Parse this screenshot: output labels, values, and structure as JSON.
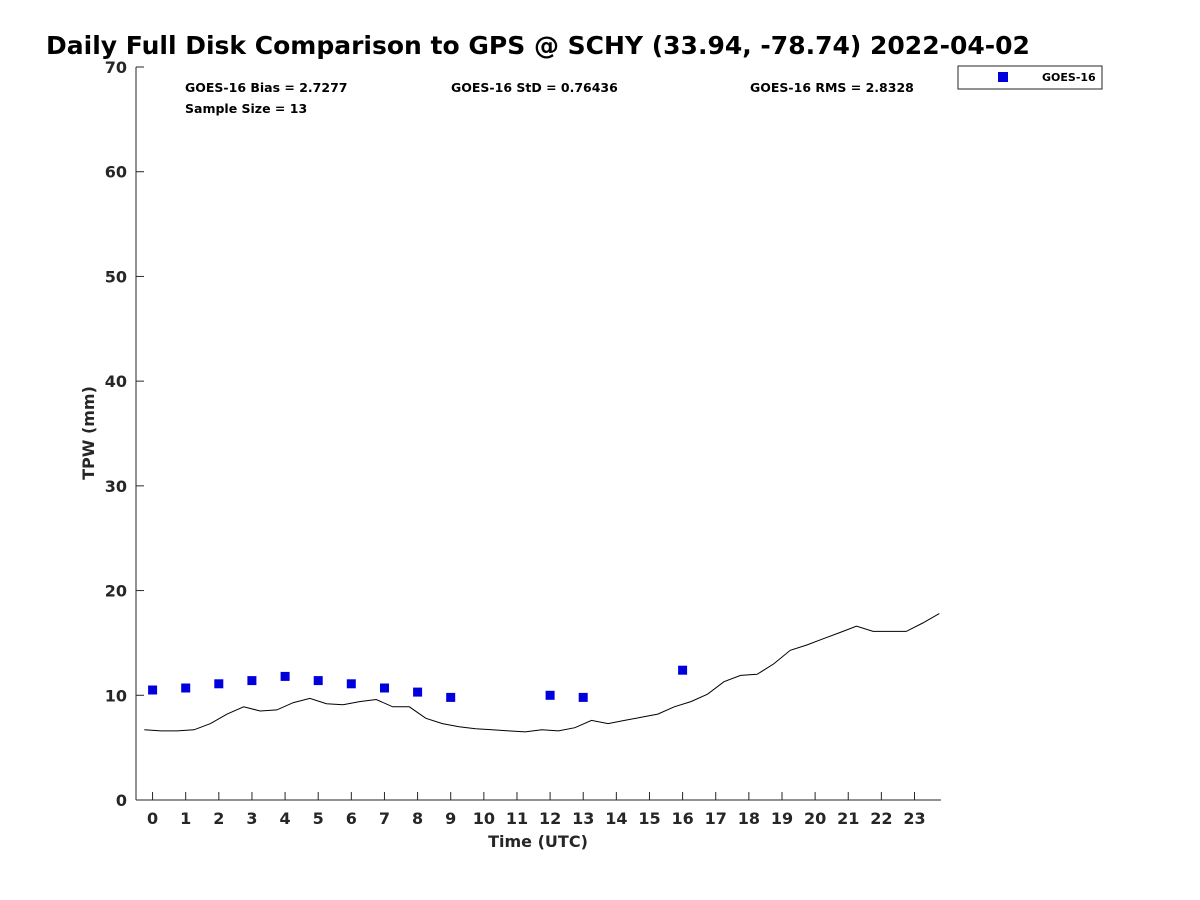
{
  "chart_data": {
    "type": "scatter",
    "title": "Daily Full Disk Comparison to GPS @ SCHY (33.94, -78.74) 2022-04-02",
    "xlabel": "Time (UTC)",
    "ylabel": "TPW (mm)",
    "xlim": [
      -0.5,
      23.8
    ],
    "ylim": [
      0,
      70
    ],
    "x_ticks": [
      0,
      1,
      2,
      3,
      4,
      5,
      6,
      7,
      8,
      9,
      10,
      11,
      12,
      13,
      14,
      15,
      16,
      17,
      18,
      19,
      20,
      21,
      22,
      23
    ],
    "y_ticks": [
      0,
      10,
      20,
      30,
      40,
      50,
      60,
      70
    ],
    "grid": false,
    "legend_position": "top-right-outside",
    "stats": {
      "bias": "GOES-16 Bias = 2.7277",
      "std": "GOES-16 StD = 0.76436",
      "rms": "GOES-16 RMS = 2.8328",
      "sample_size": "Sample Size = 13"
    },
    "series": [
      {
        "name": "GOES-16",
        "kind": "scatter",
        "marker": "square",
        "color": "#0000dd",
        "x": [
          0,
          1,
          2,
          3,
          4,
          5,
          6,
          7,
          8,
          9,
          12,
          13,
          16
        ],
        "y": [
          10.5,
          10.7,
          11.1,
          11.4,
          11.8,
          11.4,
          11.1,
          10.7,
          10.3,
          9.8,
          10.0,
          9.8,
          12.4
        ]
      },
      {
        "kind": "line",
        "color": "#000000",
        "x": [
          -0.25,
          0.25,
          0.75,
          1.25,
          1.75,
          2.25,
          2.75,
          3.25,
          3.75,
          4.25,
          4.75,
          5.25,
          5.75,
          6.25,
          6.75,
          7.25,
          7.75,
          8.25,
          8.75,
          9.25,
          9.75,
          10.25,
          10.75,
          11.25,
          11.75,
          12.25,
          12.75,
          13.25,
          13.75,
          14.25,
          14.75,
          15.25,
          15.75,
          16.25,
          16.75,
          17.25,
          17.75,
          18.25,
          18.75,
          19.25,
          19.75,
          20.25,
          20.75,
          21.25,
          21.75,
          22.25,
          22.75,
          23.25,
          23.75
        ],
        "y": [
          6.7,
          6.6,
          6.6,
          6.7,
          7.3,
          8.2,
          8.9,
          8.5,
          8.6,
          9.3,
          9.7,
          9.2,
          9.1,
          9.4,
          9.6,
          8.9,
          8.9,
          7.8,
          7.3,
          7.0,
          6.8,
          6.7,
          6.6,
          6.5,
          6.7,
          6.6,
          6.9,
          7.6,
          7.3,
          7.6,
          7.9,
          8.2,
          8.9,
          9.4,
          10.1,
          11.3,
          11.9,
          12.0,
          13.0,
          14.3,
          14.8,
          15.4,
          16.0,
          16.6,
          16.1,
          16.1,
          16.1,
          16.9,
          17.8
        ]
      }
    ]
  }
}
